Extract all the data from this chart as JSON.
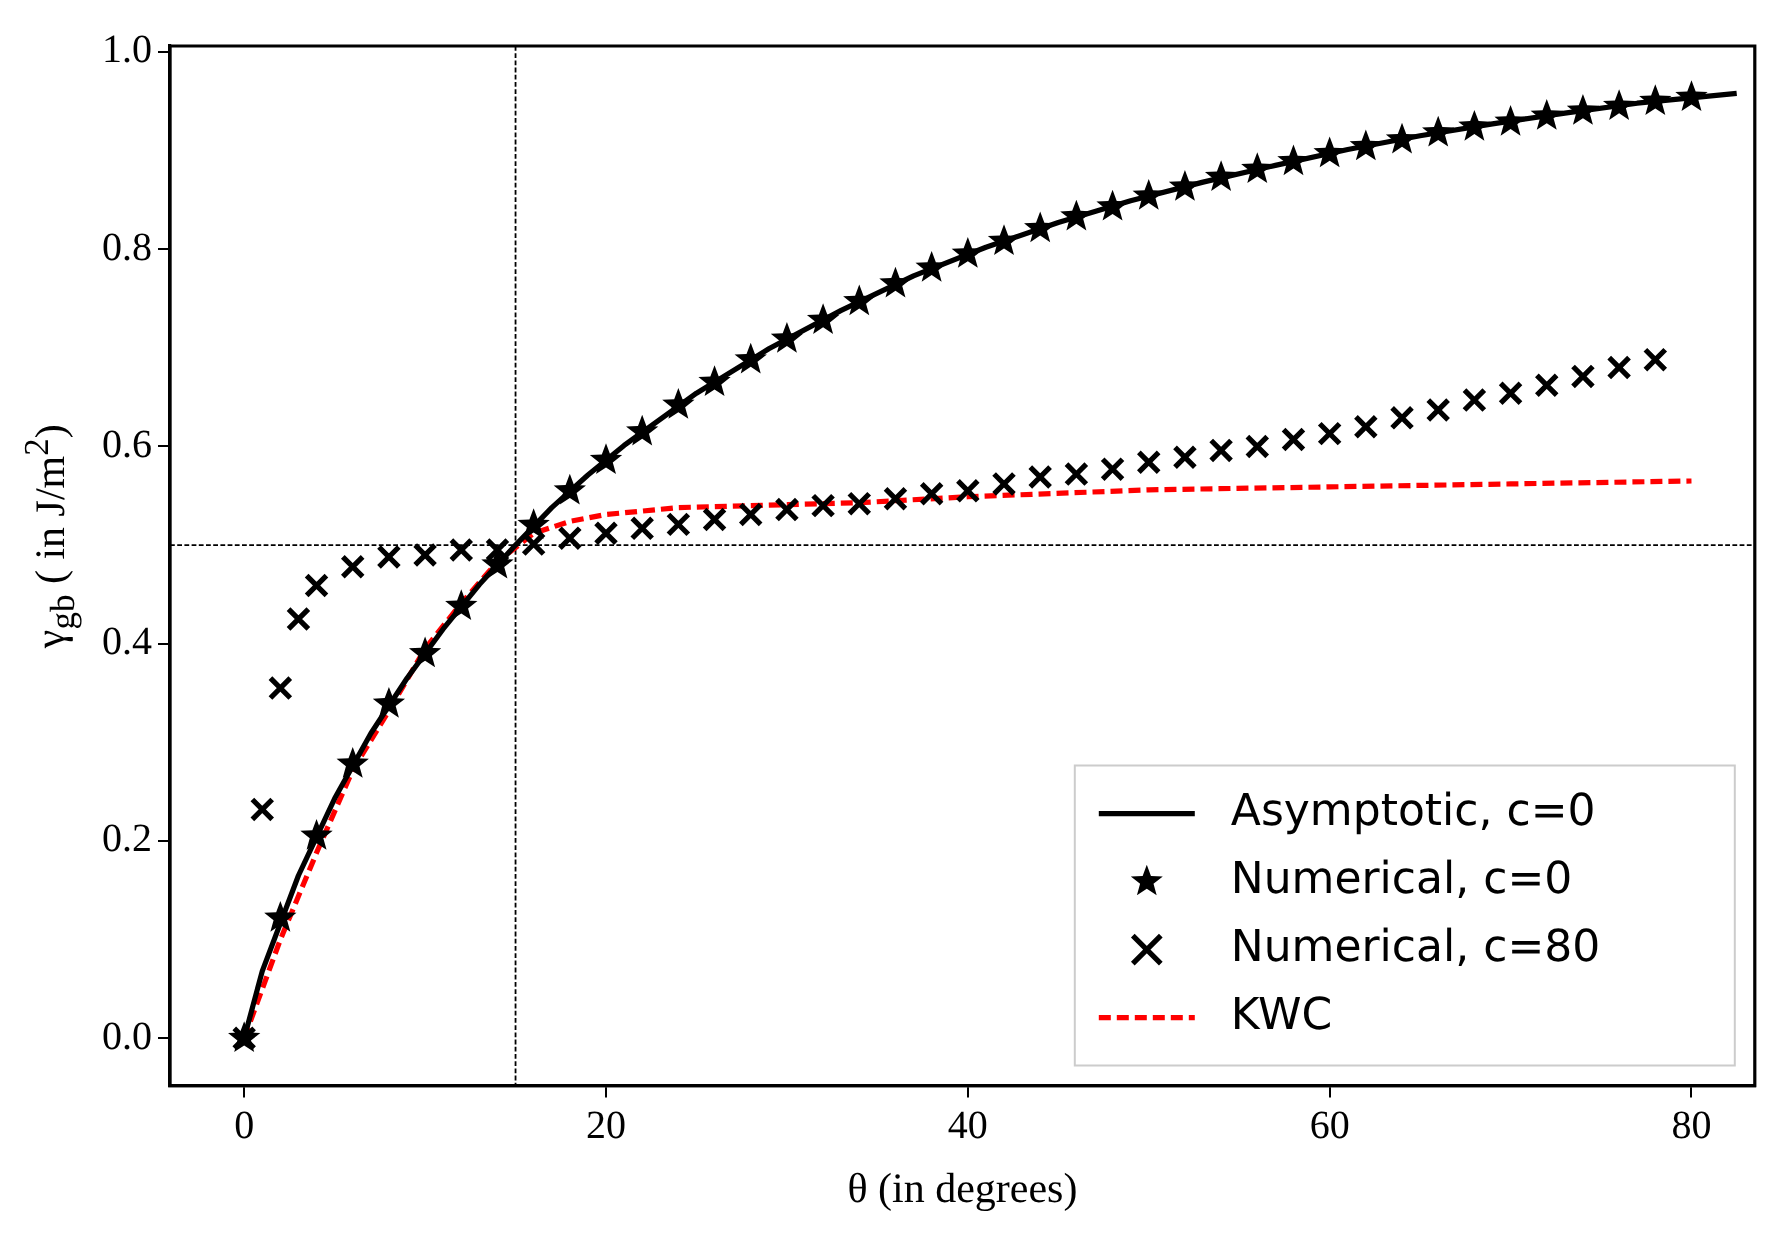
{
  "chart_data": {
    "type": "line",
    "xlabel": "θ (in degrees)",
    "ylabel": "γ$_{gb}$ ( in J/m$^{2}$)",
    "xlim": [
      -4.1,
      83.5
    ],
    "ylim": [
      -0.048,
      1.006
    ],
    "xticks": [
      0,
      20,
      40,
      60,
      80
    ],
    "yticks": [
      {
        "value": 0,
        "label": "0.0"
      },
      {
        "value": 0.2,
        "label": "0.2"
      },
      {
        "value": 0.4,
        "label": "0.4"
      },
      {
        "value": 0.6,
        "label": "0.6"
      },
      {
        "value": 0.8,
        "label": "0.8"
      },
      {
        "value": 1,
        "label": "1.0"
      }
    ],
    "grid": false,
    "legend": "bottom right",
    "ref_lines": [
      {
        "axis": "x",
        "value": 15,
        "color": "#000000",
        "line_style": "dashed"
      },
      {
        "axis": "y",
        "value": 0.5,
        "color": "#000000",
        "line_style": "dashed"
      }
    ],
    "series": [
      {
        "name": "Asymptotic, c=0",
        "type": "line",
        "color": "#000000",
        "line_style": "solid",
        "marker": "none",
        "x": [
          0,
          1,
          3,
          5,
          7,
          9,
          11,
          13,
          15,
          17,
          19,
          21,
          25,
          29,
          33,
          37,
          41,
          45,
          49,
          53,
          57,
          61,
          65,
          69,
          73,
          77,
          82.5
        ],
        "values": [
          0,
          0.068,
          0.165,
          0.243,
          0.309,
          0.365,
          0.415,
          0.46,
          0.5,
          0.538,
          0.571,
          0.601,
          0.654,
          0.699,
          0.738,
          0.773,
          0.802,
          0.827,
          0.849,
          0.868,
          0.885,
          0.901,
          0.915,
          0.927,
          0.938,
          0.948,
          0.958
        ]
      },
      {
        "name": "Numerical, c=0",
        "type": "scatter",
        "color": "#000000",
        "marker": "star",
        "x": [
          0,
          2,
          4,
          6,
          8,
          10,
          12,
          14,
          16,
          18,
          20,
          22,
          24,
          26,
          28,
          30,
          32,
          34,
          36,
          38,
          40,
          42,
          44,
          46,
          48,
          50,
          52,
          54,
          56,
          58,
          60,
          62,
          64,
          66,
          68,
          70,
          72,
          74,
          76,
          78,
          80
        ],
        "values": [
          0,
          0.122,
          0.205,
          0.278,
          0.339,
          0.39,
          0.438,
          0.48,
          0.52,
          0.555,
          0.586,
          0.615,
          0.642,
          0.665,
          0.688,
          0.709,
          0.728,
          0.747,
          0.765,
          0.781,
          0.795,
          0.808,
          0.821,
          0.833,
          0.843,
          0.854,
          0.863,
          0.873,
          0.881,
          0.889,
          0.897,
          0.904,
          0.911,
          0.918,
          0.924,
          0.929,
          0.935,
          0.94,
          0.945,
          0.95,
          0.954
        ]
      },
      {
        "name": "Numerical, c=80",
        "type": "scatter",
        "color": "#000000",
        "marker": "cross",
        "x": [
          0,
          1,
          2,
          3,
          4,
          6,
          8,
          10,
          12,
          14,
          16,
          18,
          20,
          22,
          24,
          26,
          28,
          30,
          32,
          34,
          36,
          38,
          40,
          42,
          44,
          46,
          48,
          50,
          52,
          54,
          56,
          58,
          60,
          62,
          64,
          66,
          68,
          70,
          72,
          74,
          76,
          78
        ],
        "values": [
          0,
          0.232,
          0.355,
          0.425,
          0.459,
          0.478,
          0.488,
          0.49,
          0.495,
          0.495,
          0.501,
          0.507,
          0.512,
          0.517,
          0.521,
          0.526,
          0.531,
          0.536,
          0.54,
          0.542,
          0.547,
          0.552,
          0.555,
          0.562,
          0.569,
          0.572,
          0.577,
          0.584,
          0.589,
          0.596,
          0.6,
          0.607,
          0.613,
          0.62,
          0.629,
          0.637,
          0.647,
          0.654,
          0.662,
          0.671,
          0.68,
          0.688
        ]
      },
      {
        "name": "KWC",
        "type": "line",
        "color": "#ff0000",
        "line_style": "dashed",
        "marker": "none",
        "x": [
          0,
          1,
          2,
          4,
          6,
          8,
          10,
          12,
          14,
          16,
          18,
          20,
          24,
          28,
          34,
          40,
          50,
          60,
          70,
          80
        ],
        "values": [
          0,
          0.05,
          0.1,
          0.188,
          0.272,
          0.332,
          0.395,
          0.441,
          0.483,
          0.512,
          0.524,
          0.531,
          0.538,
          0.54,
          0.543,
          0.549,
          0.556,
          0.559,
          0.562,
          0.565
        ]
      }
    ]
  }
}
